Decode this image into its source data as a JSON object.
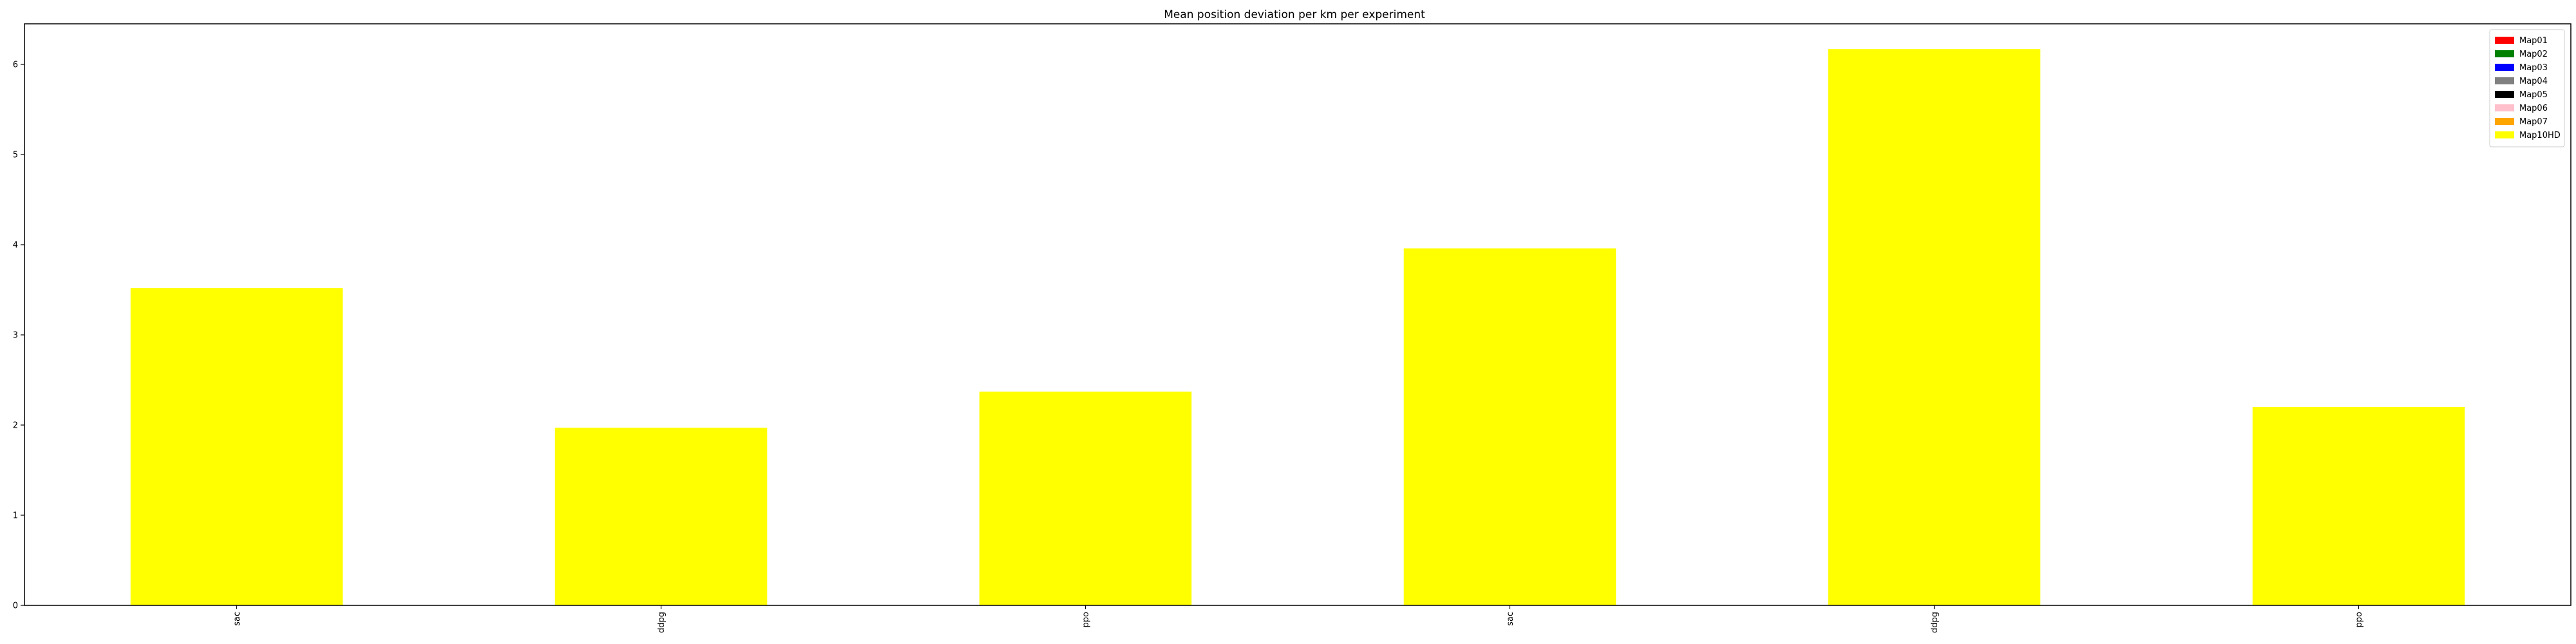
{
  "chart_data": {
    "type": "bar",
    "title": "Mean position deviation per km per experiment",
    "xlabel": "",
    "ylabel": "",
    "categories": [
      "sac",
      "ddpg",
      "ppo",
      "sac",
      "ddpg",
      "ppo"
    ],
    "ylim": [
      0,
      6.45
    ],
    "yticks": [
      0,
      1,
      2,
      3,
      4,
      5,
      6
    ],
    "xtick_rotation": "vertical",
    "grid": false,
    "legend_position": "upper right",
    "stacked": true,
    "series": [
      {
        "name": "Map01",
        "color": "#ff0000",
        "values": [
          0,
          0,
          0,
          0,
          0,
          0
        ]
      },
      {
        "name": "Map02",
        "color": "#008000",
        "values": [
          0,
          0,
          0,
          0,
          0,
          0
        ]
      },
      {
        "name": "Map03",
        "color": "#0000ff",
        "values": [
          0,
          0,
          0,
          0,
          0,
          0
        ]
      },
      {
        "name": "Map04",
        "color": "#808080",
        "values": [
          0,
          0,
          0,
          0,
          0,
          0
        ]
      },
      {
        "name": "Map05",
        "color": "#000000",
        "values": [
          0,
          0,
          0,
          0,
          0,
          0
        ]
      },
      {
        "name": "Map06",
        "color": "#ffc0cb",
        "values": [
          0,
          0,
          0,
          0,
          0,
          0
        ]
      },
      {
        "name": "Map07",
        "color": "#ffa500",
        "values": [
          0,
          0,
          0,
          0,
          0,
          0
        ]
      },
      {
        "name": "Map10HD",
        "color": "#ffff00",
        "values": [
          3.52,
          1.97,
          2.37,
          3.96,
          6.17,
          2.2
        ]
      }
    ]
  }
}
